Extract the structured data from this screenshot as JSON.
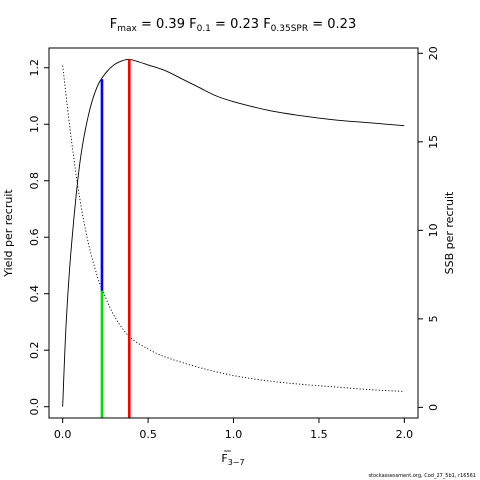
{
  "chart_data": {
    "type": "line",
    "title": {
      "fmax": {
        "name": "F",
        "sub": "max",
        "value": "0.39"
      },
      "f01": {
        "name": "F",
        "sub": "0.1",
        "value": "0.23"
      },
      "f035": {
        "name": "F",
        "sub": "0.35SPR",
        "value": "0.23"
      }
    },
    "xlabel": {
      "name": "F",
      "sub": "3−7"
    },
    "ylabel_left": "Yield per recruit",
    "ylabel_right": "SSB per recruit",
    "xlim": [
      -0.08,
      2.08
    ],
    "ylim_left": [
      -0.04,
      1.27
    ],
    "ylim_right": [
      -0.6,
      20.3
    ],
    "x_ticks": [
      {
        "value": 0,
        "label": "0.0"
      },
      {
        "value": 0.5,
        "label": "0.5"
      },
      {
        "value": 1.0,
        "label": "1.0"
      },
      {
        "value": 1.5,
        "label": "1.5"
      },
      {
        "value": 2.0,
        "label": "2.0"
      }
    ],
    "y_ticks_left": [
      {
        "value": 0,
        "label": "0.0"
      },
      {
        "value": 0.2,
        "label": "0.2"
      },
      {
        "value": 0.4,
        "label": "0.4"
      },
      {
        "value": 0.6,
        "label": "0.6"
      },
      {
        "value": 0.8,
        "label": "0.8"
      },
      {
        "value": 1.0,
        "label": "1.0"
      },
      {
        "value": 1.2,
        "label": "1.2"
      }
    ],
    "y_ticks_right": [
      {
        "value": 0,
        "label": "0"
      },
      {
        "value": 5,
        "label": "5"
      },
      {
        "value": 10,
        "label": "10"
      },
      {
        "value": 15,
        "label": "15"
      },
      {
        "value": 20,
        "label": "20"
      }
    ],
    "series": [
      {
        "axis": "left",
        "style": "solid",
        "color": "#000000",
        "x": [
          0,
          0.02,
          0.05,
          0.1,
          0.15,
          0.2,
          0.25,
          0.3,
          0.35,
          0.39,
          0.45,
          0.5,
          0.6,
          0.7,
          0.8,
          0.9,
          1.0,
          1.2,
          1.4,
          1.6,
          1.8,
          2.0
        ],
        "y": [
          0,
          0.29,
          0.56,
          0.86,
          1.03,
          1.13,
          1.18,
          1.21,
          1.225,
          1.23,
          1.22,
          1.21,
          1.19,
          1.16,
          1.13,
          1.1,
          1.08,
          1.05,
          1.03,
          1.015,
          1.005,
          0.995
        ]
      },
      {
        "axis": "right",
        "style": "dotted",
        "color": "#000000",
        "x": [
          0,
          0.05,
          0.1,
          0.15,
          0.2,
          0.23,
          0.3,
          0.39,
          0.5,
          0.6,
          0.8,
          1.0,
          1.2,
          1.4,
          1.6,
          1.8,
          2.0
        ],
        "y": [
          19.3,
          15.2,
          11.8,
          9.3,
          7.5,
          6.7,
          5.2,
          4.0,
          3.3,
          2.85,
          2.25,
          1.8,
          1.5,
          1.3,
          1.15,
          1.0,
          0.9
        ]
      }
    ],
    "reference_lines": [
      {
        "axis": "left",
        "color": "#00dd00",
        "x": 0.23,
        "y_from": -0.04,
        "y_to": 0.41
      },
      {
        "axis": "left",
        "color": "#0000ff",
        "x": 0.23,
        "y_from": 0.41,
        "y_to": 1.16
      },
      {
        "axis": "left",
        "color": "#ff0000",
        "x": 0.39,
        "y_from": -0.04,
        "y_to": 1.23
      }
    ],
    "footer": "stockassessment.org, Cod_27_5b1, r16561"
  }
}
